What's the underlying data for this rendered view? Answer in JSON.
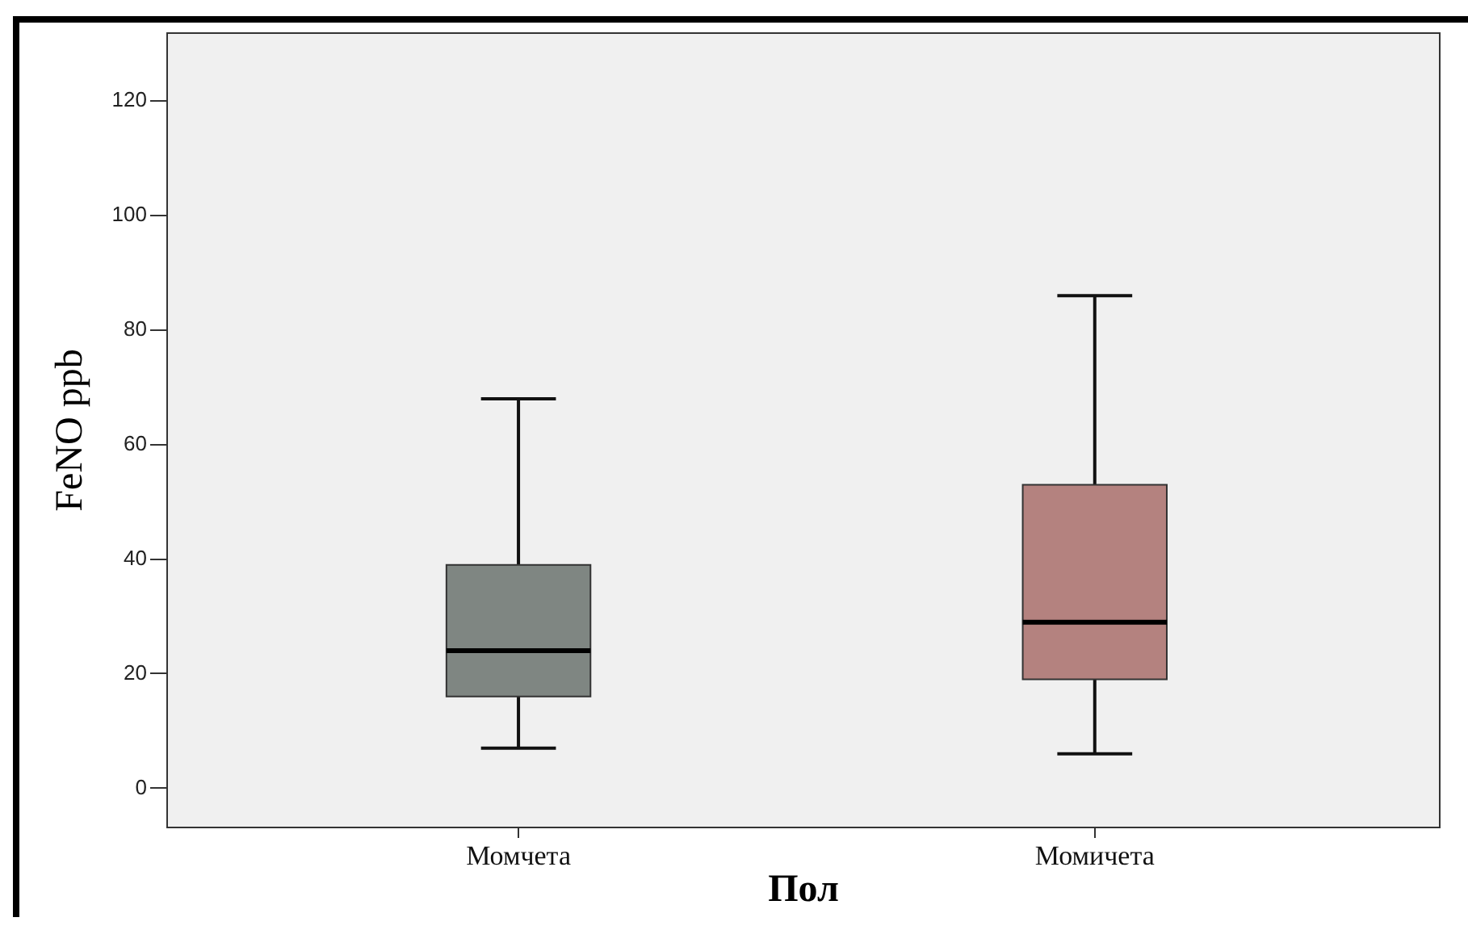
{
  "chart_data": {
    "type": "box",
    "xlabel": "Пол",
    "ylabel": "FeNO ppb",
    "categories": [
      "Момчета",
      "Момичета"
    ],
    "boxes": [
      {
        "low": 7,
        "q1": 16,
        "median": 24,
        "q3": 39,
        "high": 68
      },
      {
        "low": 6,
        "q1": 19,
        "median": 29,
        "q3": 53,
        "high": 86
      }
    ],
    "colors": [
      "#7f8682",
      "#b4827f"
    ],
    "ylim": [
      -7,
      132
    ],
    "yticks": [
      0,
      20,
      40,
      60,
      80,
      100,
      120
    ],
    "grid": false
  }
}
